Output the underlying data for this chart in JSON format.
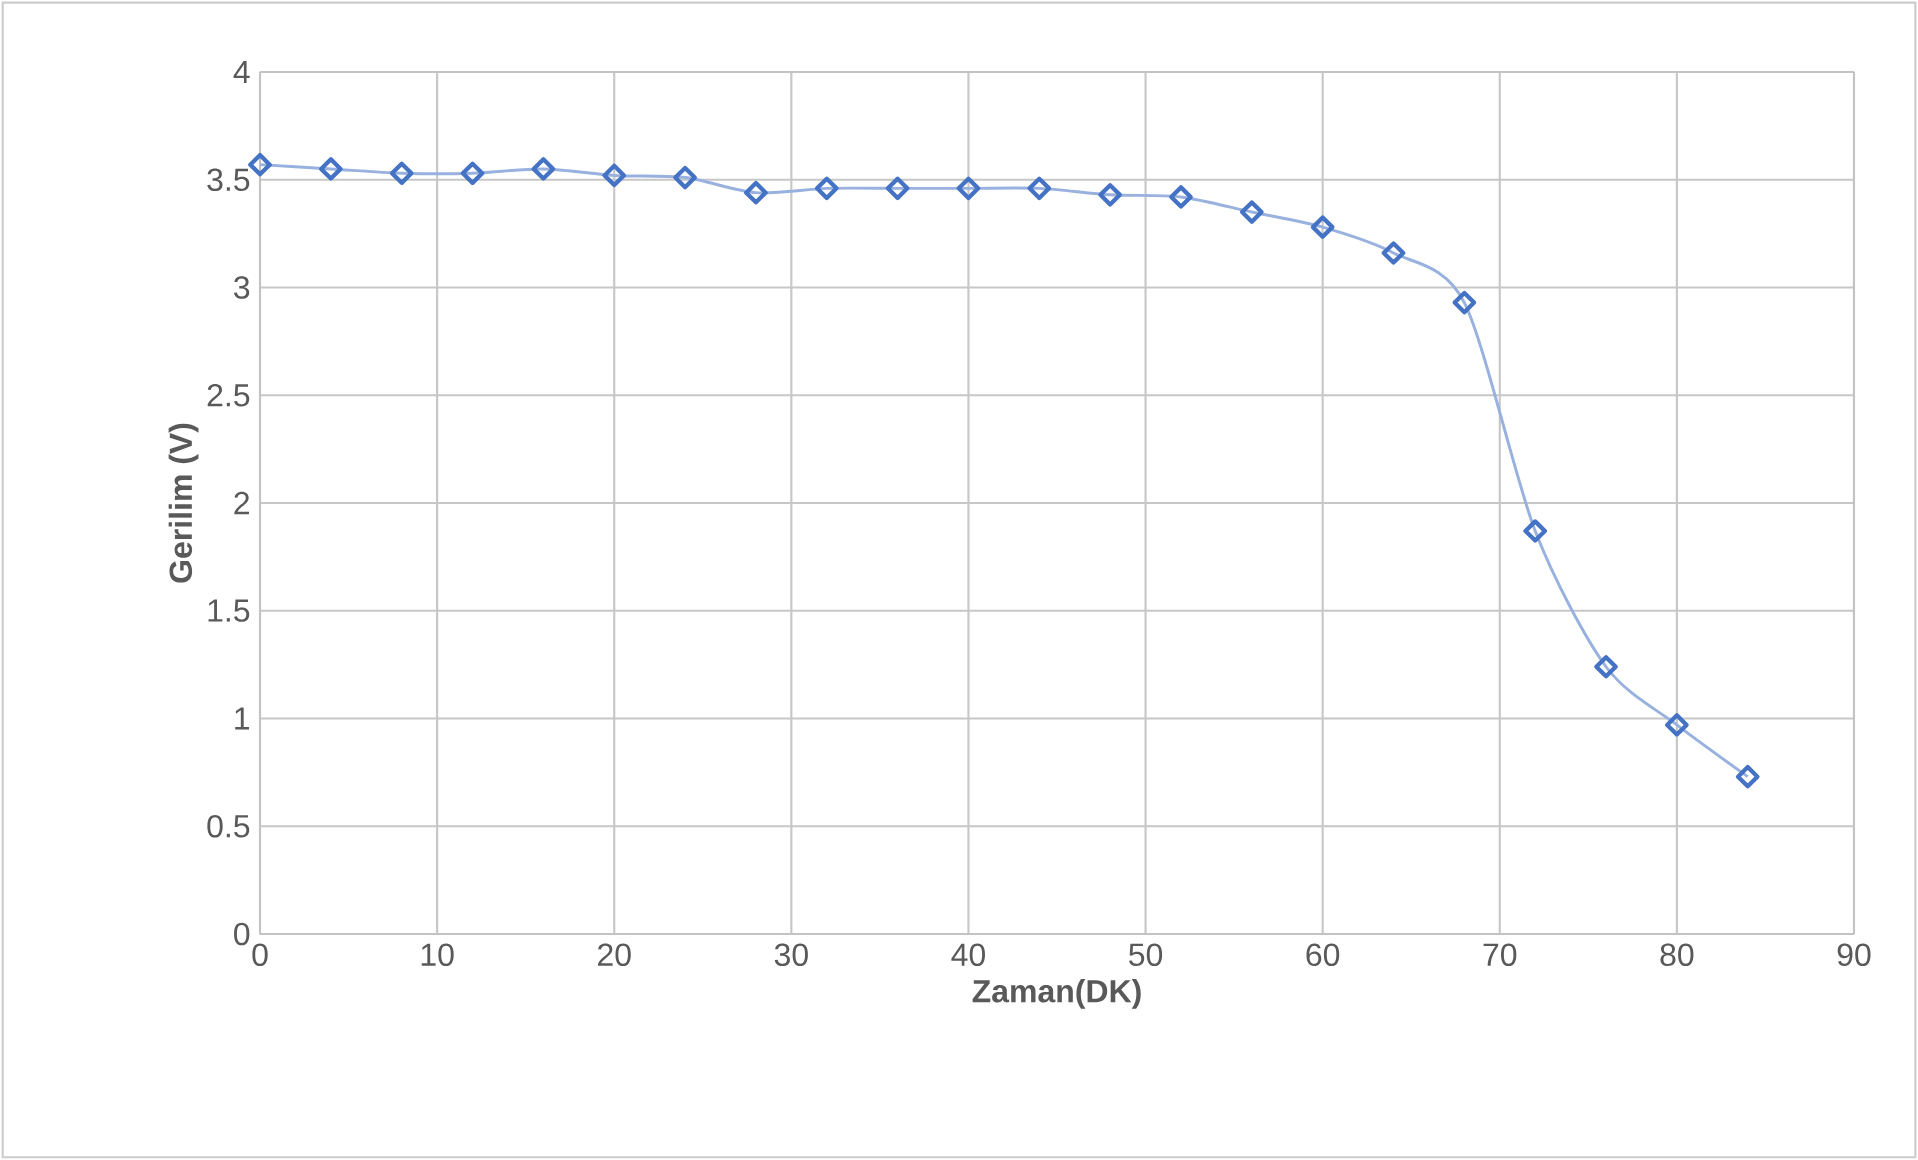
{
  "chart_data": {
    "type": "line",
    "xlabel": "Zaman(DK)",
    "ylabel": "Gerilim (V)",
    "x": [
      0,
      4,
      8,
      12,
      16,
      20,
      24,
      28,
      32,
      36,
      40,
      44,
      48,
      52,
      56,
      60,
      64,
      68,
      72,
      76,
      80,
      84
    ],
    "series": [
      {
        "color": "#4472c4",
        "values": [
          3.57,
          3.55,
          3.53,
          3.53,
          3.55,
          3.52,
          3.51,
          3.44,
          3.46,
          3.46,
          3.46,
          3.46,
          3.43,
          3.42,
          3.35,
          3.28,
          3.16,
          2.93,
          1.87,
          1.24,
          0.97,
          0.73
        ]
      }
    ],
    "xlim": [
      0,
      90
    ],
    "ylim": [
      0,
      4
    ],
    "xticks": [
      0,
      10,
      20,
      30,
      40,
      50,
      60,
      70,
      80,
      90
    ],
    "yticks": [
      0,
      0.5,
      1,
      1.5,
      2,
      2.5,
      3,
      3.5,
      4
    ],
    "grid": true,
    "marker": "diamond",
    "line_style": "solid"
  }
}
